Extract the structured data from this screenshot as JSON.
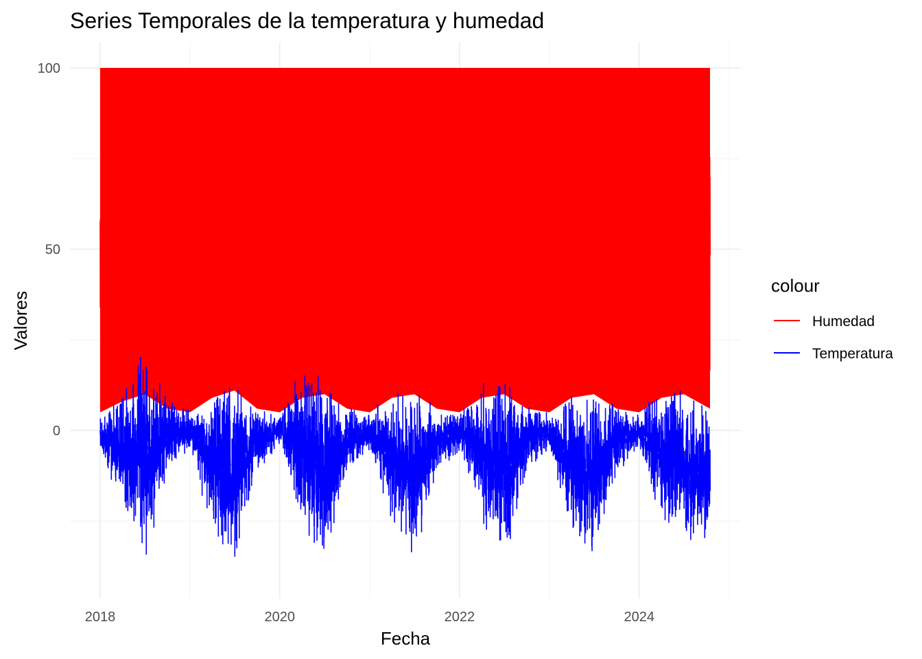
{
  "chart_data": {
    "type": "line",
    "title": "Series Temporales de la temperatura y humedad",
    "xlabel": "Fecha",
    "ylabel": "Valores",
    "x_range": [
      "2018-01-01",
      "2024-10-15"
    ],
    "x_ticks": [
      "2018",
      "2020",
      "2022",
      "2024"
    ],
    "ylim": [
      -40,
      100
    ],
    "y_ticks": [
      0,
      50,
      100
    ],
    "grid": true,
    "legend": {
      "title": "colour",
      "position": "right",
      "entries": [
        {
          "label": "Humedad",
          "color": "#FF0000"
        },
        {
          "label": "Temperatura",
          "color": "#0000FF"
        }
      ]
    },
    "series": [
      {
        "name": "Humedad",
        "color": "#FF0000",
        "frequency": "daily",
        "summary": {
          "max": 100,
          "min": 0
        },
        "max_envelope": {
          "x": [
            "2018-01-01",
            "2018-04-01",
            "2018-07-01",
            "2018-10-01",
            "2019-01-01",
            "2019-04-01",
            "2019-07-01",
            "2019-10-01",
            "2020-01-01",
            "2020-04-01",
            "2020-07-01",
            "2020-10-01",
            "2021-01-01",
            "2021-04-01",
            "2021-07-01",
            "2021-10-01",
            "2022-01-01",
            "2022-04-01",
            "2022-07-01",
            "2022-10-01",
            "2023-01-01",
            "2023-04-01",
            "2023-07-01",
            "2023-10-01",
            "2024-01-01",
            "2024-04-01",
            "2024-07-01",
            "2024-10-15"
          ],
          "y": [
            100,
            100,
            100,
            100,
            100,
            100,
            100,
            100,
            100,
            100,
            100,
            100,
            100,
            100,
            100,
            100,
            100,
            100,
            100,
            100,
            100,
            100,
            100,
            100,
            100,
            100,
            100,
            100
          ]
        },
        "min_envelope": {
          "x": [
            "2018-01-01",
            "2018-04-01",
            "2018-07-01",
            "2018-10-01",
            "2019-01-01",
            "2019-04-01",
            "2019-07-01",
            "2019-10-01",
            "2020-01-01",
            "2020-04-01",
            "2020-07-01",
            "2020-10-01",
            "2021-01-01",
            "2021-04-01",
            "2021-07-01",
            "2021-10-01",
            "2022-01-01",
            "2022-04-01",
            "2022-07-01",
            "2022-10-01",
            "2023-01-01",
            "2023-04-01",
            "2023-07-01",
            "2023-10-01",
            "2024-01-01",
            "2024-04-01",
            "2024-07-01",
            "2024-10-15"
          ],
          "y": [
            5,
            8,
            10,
            6,
            5,
            9,
            11,
            6,
            5,
            9,
            10,
            6,
            5,
            9,
            10,
            6,
            5,
            9,
            10,
            6,
            5,
            9,
            10,
            6,
            5,
            9,
            10,
            6
          ]
        }
      },
      {
        "name": "Temperatura",
        "color": "#0000FF",
        "frequency": "daily",
        "summary": {
          "max": 25,
          "min": -40
        },
        "max_envelope": {
          "x": [
            "2018-01-01",
            "2018-04-01",
            "2018-07-01",
            "2018-10-01",
            "2019-01-01",
            "2019-04-01",
            "2019-07-01",
            "2019-10-01",
            "2020-01-01",
            "2020-04-01",
            "2020-07-01",
            "2020-10-01",
            "2021-01-01",
            "2021-04-01",
            "2021-07-01",
            "2021-10-01",
            "2022-01-01",
            "2022-04-01",
            "2022-07-01",
            "2022-10-01",
            "2023-01-01",
            "2023-04-01",
            "2023-07-01",
            "2023-10-01",
            "2024-01-01",
            "2024-04-01",
            "2024-07-01",
            "2024-10-15"
          ],
          "y": [
            4,
            11,
            25,
            9,
            6,
            12,
            15,
            7,
            5,
            18,
            16,
            8,
            5,
            13,
            12,
            7,
            5,
            14,
            17,
            7,
            5,
            11,
            12,
            7,
            5,
            14,
            12,
            8
          ]
        },
        "min_envelope": {
          "x": [
            "2018-01-01",
            "2018-04-01",
            "2018-07-01",
            "2018-10-01",
            "2019-01-01",
            "2019-04-01",
            "2019-07-01",
            "2019-10-01",
            "2020-01-01",
            "2020-04-01",
            "2020-07-01",
            "2020-10-01",
            "2021-01-01",
            "2021-04-01",
            "2021-07-01",
            "2021-10-01",
            "2022-01-01",
            "2022-04-01",
            "2022-07-01",
            "2022-10-01",
            "2023-01-01",
            "2023-04-01",
            "2023-07-01",
            "2023-10-01",
            "2024-01-01",
            "2024-04-01",
            "2024-07-01",
            "2024-10-15"
          ],
          "y": [
            -7,
            -22,
            -38,
            -12,
            -6,
            -30,
            -38,
            -12,
            -5,
            -28,
            -39,
            -12,
            -6,
            -28,
            -40,
            -12,
            -6,
            -28,
            -37,
            -12,
            -6,
            -30,
            -37,
            -12,
            -6,
            -26,
            -36,
            -34
          ]
        }
      }
    ]
  }
}
